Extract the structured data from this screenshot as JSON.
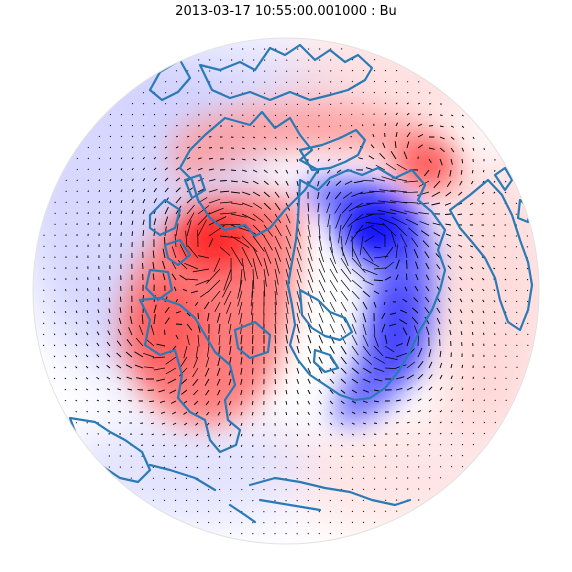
{
  "figure": {
    "title": "2013-03-17 10:55:00.001000 : Bu"
  },
  "map": {
    "projection": "north-polar-orthographic",
    "field_name": "Bu",
    "colormap": "bwr",
    "coastline_color": "#2a7ab5",
    "positive_color": "#ff0000",
    "negative_color": "#0000ff",
    "arrow_color": "#000000",
    "features": [
      "coastlines",
      "field-colour-map",
      "vector-arrows"
    ]
  }
}
